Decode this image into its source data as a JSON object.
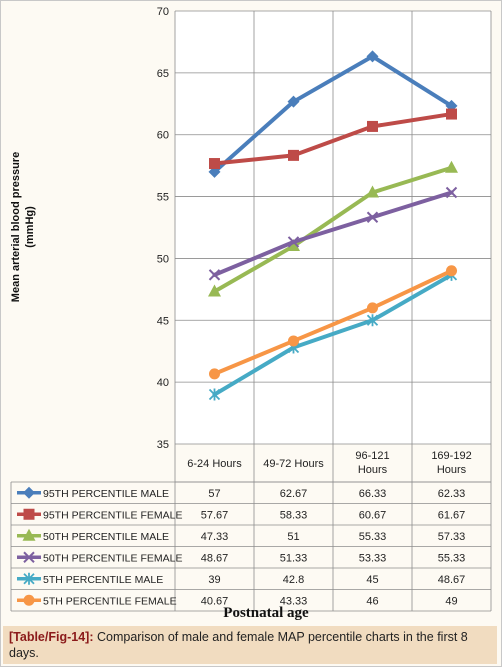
{
  "chart_data": {
    "type": "line",
    "title": "",
    "xlabel": "Postnatal age",
    "ylabel": "Mean arterial blood pressure (mmHg)",
    "ylim": [
      35,
      70
    ],
    "yticks": [
      35,
      40,
      45,
      50,
      55,
      60,
      65,
      70
    ],
    "categories": [
      "6-24 Hours",
      "49-72 Hours",
      "96-121 Hours",
      "169-192 Hours"
    ],
    "series": [
      {
        "name": "95TH PERCENTILE MALE",
        "values": [
          57,
          62.67,
          66.33,
          62.33
        ],
        "value_labels": [
          "57",
          "62.67",
          "66.33",
          "62.33"
        ],
        "color": "#4a7ebb",
        "marker": "diamond"
      },
      {
        "name": "95TH PERCENTILE FEMALE",
        "values": [
          57.67,
          58.33,
          60.67,
          61.67
        ],
        "value_labels": [
          "57.67",
          "58.33",
          "60.67",
          "61.67"
        ],
        "color": "#be4b48",
        "marker": "square"
      },
      {
        "name": "50TH PERCENTILE MALE",
        "values": [
          47.33,
          51,
          55.33,
          57.33
        ],
        "value_labels": [
          "47.33",
          "51",
          "55.33",
          "57.33"
        ],
        "color": "#98b954",
        "marker": "triangle"
      },
      {
        "name": "50TH PERCENTILE FEMALE",
        "values": [
          48.67,
          51.33,
          53.33,
          55.33
        ],
        "value_labels": [
          "48.67",
          "51.33",
          "53.33",
          "55.33"
        ],
        "color": "#7d60a0",
        "marker": "x"
      },
      {
        "name": "5TH PERCENTILE MALE",
        "values": [
          39,
          42.8,
          45,
          48.67
        ],
        "value_labels": [
          "39",
          "42.8",
          "45",
          "48.67"
        ],
        "color": "#46aac5",
        "marker": "star"
      },
      {
        "name": "5TH PERCENTILE FEMALE",
        "values": [
          40.67,
          43.33,
          46,
          49
        ],
        "value_labels": [
          "40.67",
          "43.33",
          "46",
          "49"
        ],
        "color": "#f79646",
        "marker": "circle"
      }
    ],
    "grid": true,
    "legend": "data table below chart"
  },
  "caption": {
    "tag": "[Table/Fig-14]:",
    "text": " Comparison of male and female MAP percentile charts in the first 8 days."
  }
}
